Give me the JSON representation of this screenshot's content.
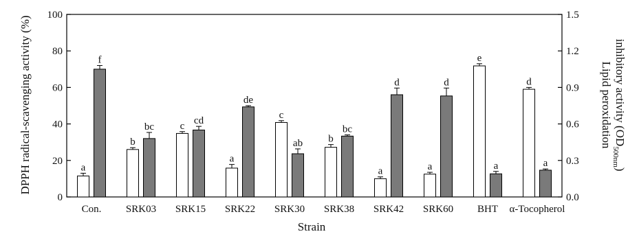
{
  "chart_data": {
    "type": "bar",
    "categories": [
      "Con.",
      "SRK03",
      "SRK15",
      "SRK22",
      "SRK30",
      "SRK38",
      "SRK42",
      "SRK60",
      "BHT",
      "α-Tocopherol"
    ],
    "xlabel": "Strain",
    "ylabel_left": "DPPH radical-scavenging activity (%)",
    "ylabel_right": {
      "line1": "Lipid peroxidation",
      "line2_main": "inhibitory activity (OD",
      "line2_sub": "500nm",
      "line2_end": ")"
    },
    "y_left": {
      "min": 0,
      "max": 100,
      "ticks": [
        "0",
        "20",
        "40",
        "60",
        "80",
        "100"
      ]
    },
    "y_right": {
      "min": 0,
      "max": 1.5,
      "ticks": [
        "0.0",
        "0.3",
        "0.6",
        "0.9",
        "1.2",
        "1.5"
      ]
    },
    "series": [
      {
        "axis": "left",
        "fill": "#ffffff",
        "values": [
          11.5,
          26,
          34.8,
          15.8,
          40.8,
          27.2,
          10,
          12.5,
          71.8,
          59
        ],
        "errors": [
          1.5,
          1,
          1,
          2,
          1,
          1.5,
          1,
          1,
          1.2,
          1
        ],
        "significance": [
          "a",
          "b",
          "c",
          "a",
          "c",
          "b",
          "a",
          "a",
          "e",
          "d"
        ]
      },
      {
        "axis": "right",
        "fill": "#7a7a7a",
        "values": [
          1.05,
          0.48,
          0.55,
          0.74,
          0.355,
          0.5,
          0.84,
          0.83,
          0.19,
          0.22
        ],
        "errors": [
          0.03,
          0.05,
          0.03,
          0.01,
          0.04,
          0.01,
          0.055,
          0.065,
          0.02,
          0.01
        ],
        "significance": [
          "f",
          "bc",
          "cd",
          "de",
          "ab",
          "bc",
          "d",
          "d",
          "a",
          "a"
        ]
      }
    ]
  }
}
